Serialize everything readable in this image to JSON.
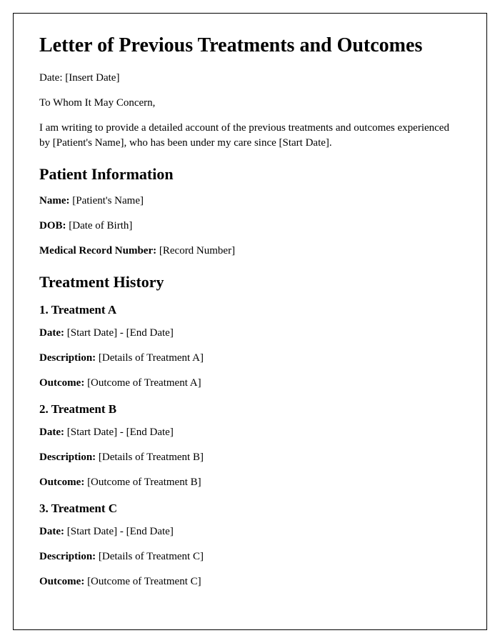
{
  "title": "Letter of Previous Treatments and Outcomes",
  "dateLine": {
    "label": "Date: ",
    "value": "[Insert Date]"
  },
  "salutation": "To Whom It May Concern,",
  "introParagraph": "I am writing to provide a detailed account of the previous treatments and outcomes experienced by [Patient's Name], who has been under my care since [Start Date].",
  "patientInfoHeading": "Patient Information",
  "patientInfo": {
    "nameLabel": "Name: ",
    "nameValue": "[Patient's Name]",
    "dobLabel": "DOB: ",
    "dobValue": "[Date of Birth]",
    "mrnLabel": "Medical Record Number: ",
    "mrnValue": "[Record Number]"
  },
  "treatmentHistoryHeading": "Treatment History",
  "treatments": [
    {
      "heading": "1. Treatment A",
      "dateLabel": "Date: ",
      "dateValue": "[Start Date] - [End Date]",
      "descLabel": "Description: ",
      "descValue": "[Details of Treatment A]",
      "outcomeLabel": "Outcome: ",
      "outcomeValue": "[Outcome of Treatment A]"
    },
    {
      "heading": "2. Treatment B",
      "dateLabel": "Date: ",
      "dateValue": "[Start Date] - [End Date]",
      "descLabel": "Description: ",
      "descValue": "[Details of Treatment B]",
      "outcomeLabel": "Outcome: ",
      "outcomeValue": "[Outcome of Treatment B]"
    },
    {
      "heading": "3. Treatment C",
      "dateLabel": "Date: ",
      "dateValue": "[Start Date] - [End Date]",
      "descLabel": "Description: ",
      "descValue": "[Details of Treatment C]",
      "outcomeLabel": "Outcome: ",
      "outcomeValue": "[Outcome of Treatment C]"
    }
  ]
}
